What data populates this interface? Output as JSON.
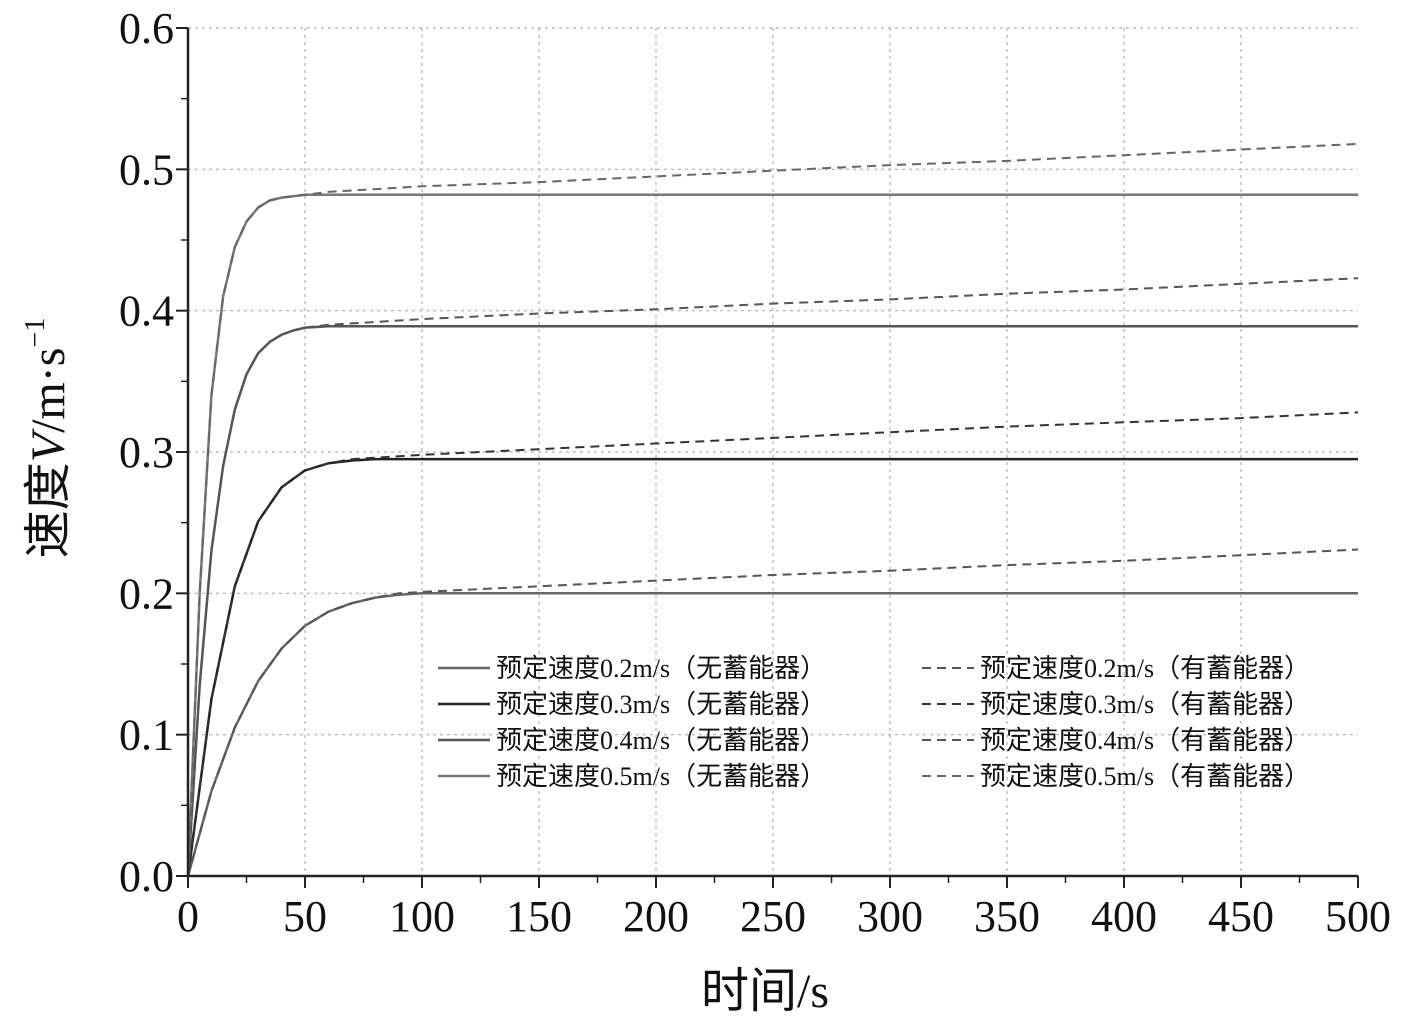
{
  "chart_data": {
    "type": "line",
    "xlabel": "时间/s",
    "ylabel_prefix": "速度",
    "ylabel_var": "V",
    "ylabel_unit": "/m·s",
    "ylabel_exp": "−1",
    "xlim": [
      0,
      500
    ],
    "ylim": [
      0,
      0.6
    ],
    "x_ticks": [
      0,
      50,
      100,
      150,
      200,
      250,
      300,
      350,
      400,
      450,
      500
    ],
    "x_tick_labels": [
      "0",
      "50",
      "100",
      "150",
      "200",
      "250",
      "300",
      "350",
      "400",
      "450",
      "500"
    ],
    "y_ticks": [
      0,
      0.1,
      0.2,
      0.3,
      0.4,
      0.5,
      0.6
    ],
    "y_tick_labels": [
      "0.0",
      "0.1",
      "0.2",
      "0.3",
      "0.4",
      "0.5",
      "0.6"
    ],
    "grid": true,
    "legend_position": "lower-right",
    "series": [
      {
        "name": "预定速度0.2m/s（无蓄能器）",
        "style": "solid",
        "color": "#666666",
        "x": [
          0,
          10,
          20,
          30,
          40,
          50,
          60,
          70,
          80,
          90,
          100,
          150,
          200,
          250,
          300,
          350,
          400,
          450,
          500
        ],
        "y": [
          0,
          0.06,
          0.105,
          0.138,
          0.161,
          0.177,
          0.187,
          0.193,
          0.197,
          0.199,
          0.2,
          0.2,
          0.2,
          0.2,
          0.2,
          0.2,
          0.2,
          0.2,
          0.2
        ]
      },
      {
        "name": "预定速度0.3m/s（无蓄能器）",
        "style": "solid",
        "color": "#222222",
        "x": [
          0,
          10,
          20,
          30,
          40,
          50,
          60,
          70,
          80,
          90,
          100,
          150,
          200,
          250,
          300,
          350,
          400,
          450,
          500
        ],
        "y": [
          0,
          0.125,
          0.205,
          0.251,
          0.275,
          0.287,
          0.292,
          0.294,
          0.295,
          0.295,
          0.295,
          0.295,
          0.295,
          0.295,
          0.295,
          0.295,
          0.295,
          0.295,
          0.295
        ]
      },
      {
        "name": "预定速度0.4m/s（无蓄能器）",
        "style": "solid",
        "color": "#555555",
        "x": [
          0,
          5,
          10,
          15,
          20,
          25,
          30,
          35,
          40,
          45,
          50,
          60,
          80,
          100,
          150,
          200,
          250,
          300,
          350,
          400,
          450,
          500
        ],
        "y": [
          0,
          0.135,
          0.23,
          0.29,
          0.33,
          0.355,
          0.37,
          0.378,
          0.383,
          0.386,
          0.388,
          0.389,
          0.389,
          0.389,
          0.389,
          0.389,
          0.389,
          0.389,
          0.389,
          0.389,
          0.389,
          0.389
        ]
      },
      {
        "name": "预定速度0.5m/s（无蓄能器）",
        "style": "solid",
        "color": "#777777",
        "x": [
          0,
          5,
          10,
          15,
          20,
          25,
          30,
          35,
          40,
          45,
          50,
          60,
          80,
          100,
          150,
          200,
          250,
          300,
          350,
          400,
          450,
          500
        ],
        "y": [
          0,
          0.2,
          0.34,
          0.41,
          0.445,
          0.463,
          0.473,
          0.478,
          0.48,
          0.481,
          0.482,
          0.482,
          0.482,
          0.482,
          0.482,
          0.482,
          0.482,
          0.482,
          0.482,
          0.482,
          0.482,
          0.482
        ]
      },
      {
        "name": "预定速度0.2m/s（有蓄能器）",
        "style": "dashed",
        "color": "#555555",
        "x": [
          0,
          10,
          20,
          30,
          40,
          50,
          60,
          70,
          80,
          90,
          100,
          150,
          200,
          250,
          300,
          350,
          400,
          450,
          500
        ],
        "y": [
          0,
          0.06,
          0.105,
          0.138,
          0.161,
          0.177,
          0.187,
          0.193,
          0.197,
          0.2,
          0.201,
          0.205,
          0.209,
          0.213,
          0.216,
          0.22,
          0.223,
          0.227,
          0.231
        ]
      },
      {
        "name": "预定速度0.3m/s（有蓄能器）",
        "style": "dashed",
        "color": "#333333",
        "x": [
          0,
          10,
          20,
          30,
          40,
          50,
          60,
          70,
          80,
          90,
          100,
          150,
          200,
          250,
          300,
          350,
          400,
          450,
          500
        ],
        "y": [
          0,
          0.125,
          0.205,
          0.251,
          0.275,
          0.287,
          0.292,
          0.295,
          0.296,
          0.297,
          0.298,
          0.302,
          0.306,
          0.31,
          0.314,
          0.318,
          0.321,
          0.324,
          0.328
        ]
      },
      {
        "name": "预定速度0.4m/s（有蓄能器）",
        "style": "dashed",
        "color": "#555555",
        "x": [
          0,
          5,
          10,
          15,
          20,
          25,
          30,
          35,
          40,
          45,
          50,
          60,
          80,
          100,
          150,
          200,
          250,
          300,
          350,
          400,
          450,
          500
        ],
        "y": [
          0,
          0.135,
          0.23,
          0.29,
          0.33,
          0.355,
          0.37,
          0.378,
          0.383,
          0.386,
          0.388,
          0.39,
          0.392,
          0.394,
          0.398,
          0.401,
          0.405,
          0.408,
          0.412,
          0.415,
          0.419,
          0.423
        ]
      },
      {
        "name": "预定速度0.5m/s（有蓄能器）",
        "style": "dashed",
        "color": "#666666",
        "x": [
          0,
          5,
          10,
          15,
          20,
          25,
          30,
          35,
          40,
          45,
          50,
          60,
          80,
          100,
          150,
          200,
          250,
          300,
          350,
          400,
          450,
          500
        ],
        "y": [
          0,
          0.2,
          0.34,
          0.41,
          0.445,
          0.463,
          0.473,
          0.478,
          0.48,
          0.481,
          0.482,
          0.484,
          0.486,
          0.488,
          0.491,
          0.495,
          0.499,
          0.503,
          0.506,
          0.51,
          0.514,
          0.518
        ]
      }
    ],
    "legend_order": [
      0,
      4,
      1,
      5,
      2,
      6,
      3,
      7
    ]
  }
}
